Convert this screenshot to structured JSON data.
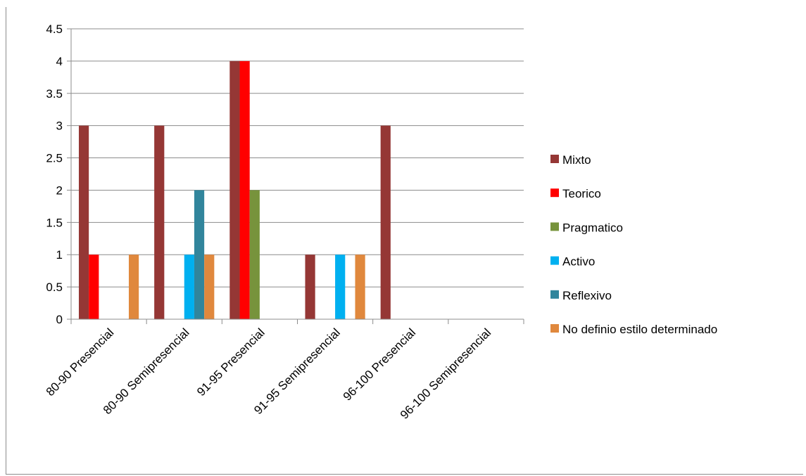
{
  "chart_data": {
    "type": "bar",
    "categories": [
      "80-90 Presencial",
      "80-90 Semipresencial",
      "91-95 Presencial",
      "91-95 Semipresencial",
      "96-100 Presencial",
      "96-100 Semipresencial"
    ],
    "series": [
      {
        "name": "Mixto",
        "color": "#953735",
        "values": [
          3,
          3,
          4,
          1,
          3,
          null
        ]
      },
      {
        "name": "Teorico",
        "color": "#ff0000",
        "values": [
          1,
          null,
          4,
          null,
          null,
          null
        ]
      },
      {
        "name": "Pragmatico",
        "color": "#77933c",
        "values": [
          null,
          null,
          2,
          null,
          null,
          null
        ]
      },
      {
        "name": "Activo",
        "color": "#00b0f0",
        "values": [
          null,
          1,
          null,
          1,
          null,
          null
        ]
      },
      {
        "name": "Reflexivo",
        "color": "#31859c",
        "values": [
          null,
          2,
          null,
          null,
          null,
          null
        ]
      },
      {
        "name": "No definio estilo determinado",
        "color": "#e0883d",
        "values": [
          1,
          1,
          null,
          1,
          null,
          null
        ]
      }
    ],
    "ylim": [
      0,
      4.5
    ],
    "yticks": [
      "0",
      "0.5",
      "1",
      "1.5",
      "2",
      "2.5",
      "3",
      "3.5",
      "4",
      "4.5"
    ],
    "grid": true,
    "legend_position": "right"
  }
}
